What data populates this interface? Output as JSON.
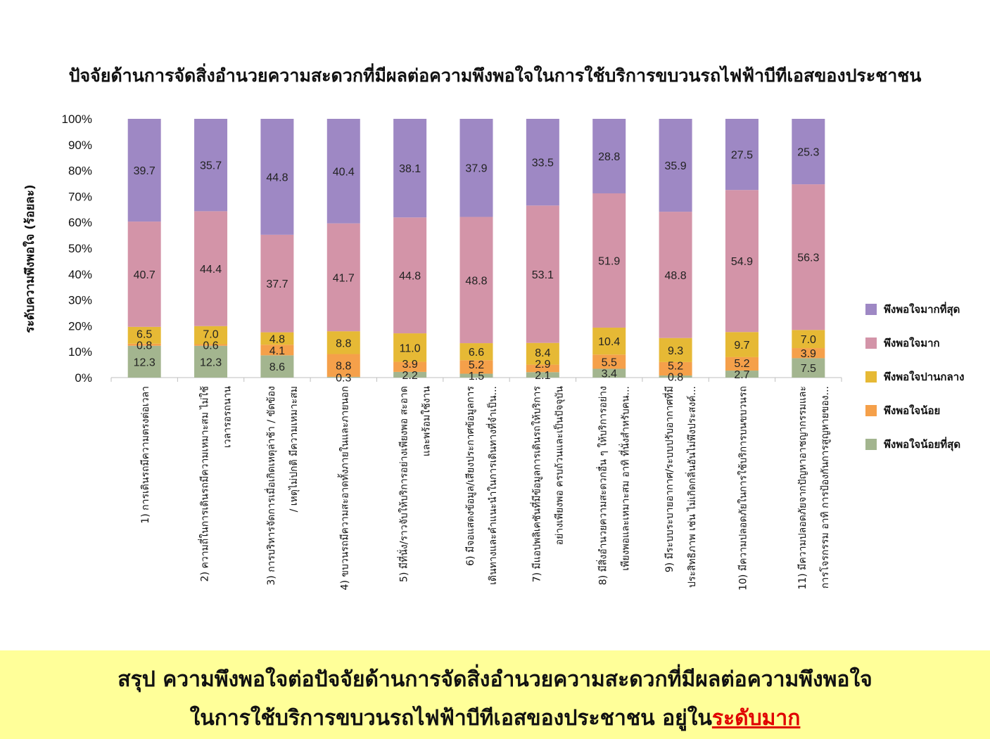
{
  "chart_data": {
    "type": "bar",
    "stacked": true,
    "percent": true,
    "title": "ปัจจัยด้านการจัดสิ่งอำนวยความสะดวกที่มีผลต่อความพึงพอใจในการใช้บริการขบวนรถไฟฟ้าบีทีเอสของประชาชน",
    "ylabel": "ระดับความพึงพอใจ (ร้อยละ)",
    "ylim": [
      0,
      100
    ],
    "yticks": [
      "0%",
      "10%",
      "20%",
      "30%",
      "40%",
      "50%",
      "60%",
      "70%",
      "80%",
      "90%",
      "100%"
    ],
    "legend_position": "right",
    "categories": [
      [
        "1) การเดินรถมีความตรงต่อเวลา"
      ],
      [
        "2) ความถี่ในการเดินรถมีความเหมาะสม ไม่ใช้",
        "เวลารอรถนาน"
      ],
      [
        "3) การบริหารจัดการเมื่อเกิดเหตุล่าช้า / ขัดข้อง",
        "/ เหตุไม่ปกติ มีความเหมาะสม"
      ],
      [
        "4) ขบวนรถมีความสะอาดทั้งภายในและภายนอก"
      ],
      [
        "5) มีที่นั่ง/ราวจับให้บริการอย่างเพียงพอ สะอาด",
        "และพร้อมใช้งาน"
      ],
      [
        "6) มีจอแสดงข้อมูล/เสียงประกาศข้อมูลการ",
        "เดินทางและคำแนะนำในการเดินทางที่จำเป็น..."
      ],
      [
        "7) มีแอปพลิเคชันที่มีข้อมูลการเดินรถให้บริการ",
        "อย่างเพียงพอ ครบถ้วนและเป็นปัจจุบัน"
      ],
      [
        "8) มีสิ่งอำนวยความสะดวกอื่น ๆ ให้บริการอย่าง",
        "เพียงพอและเหมาะสม อาทิ ที่นั่งสำหรับคน..."
      ],
      [
        "9) มีระบบระบายอากาศ/ระบบปรับอากาศที่มี",
        "ประสิทธิภาพ เช่น ไม่เกิดกลิ่นอันไม่พึงประสงค์..."
      ],
      [
        "10) มีความปลอดภัยในการใช้บริการบนขบวนรถ"
      ],
      [
        "11) มีความปลอดภัยจากปัญหาอาชญากรรมและ",
        "การโจรกรรม อาทิ การป้องกันการสูญหายของ..."
      ]
    ],
    "series": [
      {
        "name": "พึงพอใจน้อยที่สุด",
        "color": "#a3b58f",
        "values": [
          12.3,
          12.3,
          8.6,
          0.3,
          2.2,
          1.5,
          2.1,
          3.4,
          0.8,
          2.7,
          7.5
        ],
        "labels": [
          "12.3",
          "12.3",
          "8.6",
          "0.3",
          "2.2",
          "1.5",
          "2.1",
          "3.4",
          "0.8",
          "2.7",
          "7.5"
        ]
      },
      {
        "name": "พึงพอใจน้อย",
        "color": "#f5a04a",
        "values": [
          0.8,
          0.6,
          4.1,
          8.8,
          3.9,
          5.2,
          2.9,
          5.5,
          5.2,
          5.2,
          3.9
        ],
        "labels": [
          "0.8",
          "0.6",
          "4.1",
          "8.8",
          "3.9",
          "5.2",
          "2.9",
          "5.5",
          "5.2",
          "5.2",
          "3.9"
        ]
      },
      {
        "name": "พึงพอใจปานกลาง",
        "color": "#e6b935",
        "values": [
          6.5,
          7.0,
          4.8,
          8.8,
          11.0,
          6.6,
          8.4,
          10.4,
          9.3,
          9.7,
          7.0
        ],
        "labels": [
          "6.5",
          "7.0",
          "4.8",
          "8.8",
          "11.0",
          "6.6",
          "8.4",
          "10.4",
          "9.3",
          "9.7",
          "7.0"
        ]
      },
      {
        "name": "พึงพอใจมาก",
        "color": "#d394a8",
        "values": [
          40.7,
          44.4,
          37.7,
          41.7,
          44.8,
          48.8,
          53.1,
          51.9,
          48.8,
          54.9,
          56.3
        ],
        "labels": [
          "40.7",
          "44.4",
          "37.7",
          "41.7",
          "44.8",
          "48.8",
          "53.1",
          "51.9",
          "48.8",
          "54.9",
          "56.3"
        ]
      },
      {
        "name": "พึงพอใจมากที่สุด",
        "color": "#9e88c4",
        "values": [
          39.7,
          35.7,
          44.8,
          40.4,
          38.1,
          37.9,
          33.5,
          28.8,
          35.9,
          27.5,
          25.3
        ],
        "labels": [
          "39.7",
          "35.7",
          "44.8",
          "40.4",
          "38.1",
          "37.9",
          "33.5",
          "28.8",
          "35.9",
          "27.5",
          "25.3"
        ]
      }
    ]
  },
  "summary": {
    "line1": "สรุป ความพึงพอใจต่อปัจจัยด้านการจัดสิ่งอำนวยความสะดวกที่มีผลต่อความพึงพอใจ",
    "line2_prefix": "ในการใช้บริการขบวนรถไฟฟ้าบีทีเอสของประชาชน อยู่ใน",
    "line2_highlight": "ระดับมาก"
  },
  "colors": {
    "summary_background": "#ffff99",
    "highlight": "#e00000"
  }
}
